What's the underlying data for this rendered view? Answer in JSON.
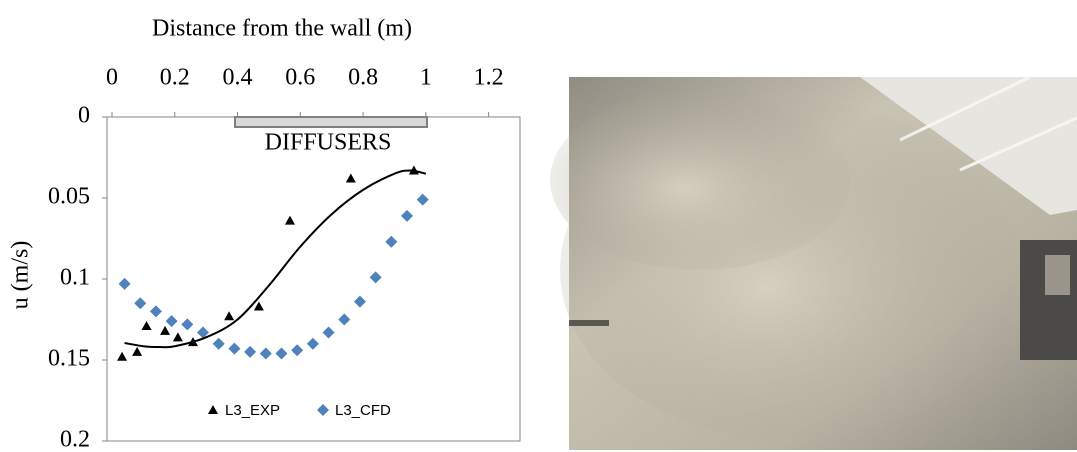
{
  "chart_data": {
    "type": "scatter",
    "x_label": "Distance from the wall (m)",
    "y_label": "u (m/s)",
    "xlim": [
      0,
      1.3
    ],
    "xticks": [
      0,
      0.2,
      0.4,
      0.6,
      0.8,
      1,
      1.2
    ],
    "ylim": [
      0,
      0.2
    ],
    "yticks": [
      0,
      0.05,
      0.1,
      0.15,
      0.2
    ],
    "y_inverted": true,
    "x_axis_position": "top",
    "annotation": "DIFFUSERS",
    "legend": "bottom",
    "series": [
      {
        "name": "L3_EXP",
        "color": "#000000",
        "marker": "triangle",
        "x": [
          0.032,
          0.08,
          0.11,
          0.169,
          0.21,
          0.258,
          0.373,
          0.468,
          0.567,
          0.761,
          0.962
        ],
        "values": [
          0.148,
          0.145,
          0.129,
          0.132,
          0.136,
          0.139,
          0.123,
          0.117,
          0.064,
          0.038,
          0.033
        ]
      },
      {
        "name": "L3_CFD",
        "color": "#4f81bd",
        "marker": "diamond",
        "x": [
          0.04,
          0.09,
          0.14,
          0.19,
          0.24,
          0.29,
          0.34,
          0.39,
          0.44,
          0.49,
          0.54,
          0.59,
          0.64,
          0.69,
          0.74,
          0.79,
          0.84,
          0.89,
          0.94,
          0.99
        ],
        "values": [
          0.103,
          0.115,
          0.12,
          0.126,
          0.128,
          0.133,
          0.14,
          0.143,
          0.145,
          0.146,
          0.146,
          0.144,
          0.14,
          0.133,
          0.125,
          0.114,
          0.099,
          0.077,
          0.061,
          0.051
        ]
      },
      {
        "type": "line",
        "color": "#000000",
        "x": [
          0.04,
          0.1,
          0.15,
          0.2,
          0.3,
          0.4,
          0.5,
          0.6,
          0.7,
          0.8,
          0.9,
          0.95,
          1.0
        ],
        "values": [
          0.1395,
          0.1415,
          0.142,
          0.1415,
          0.136,
          0.125,
          0.104,
          0.08,
          0.06,
          0.045,
          0.035,
          0.033,
          0.035
        ]
      }
    ]
  }
}
